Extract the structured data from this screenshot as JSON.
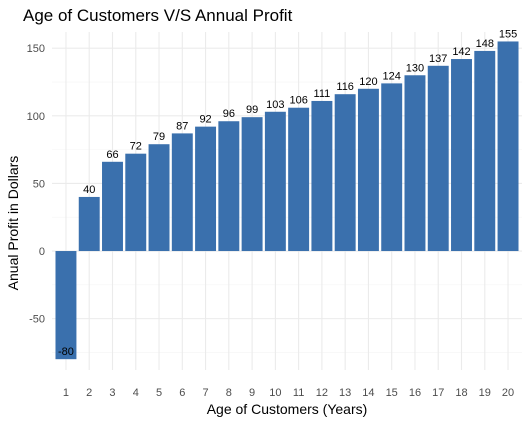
{
  "chart_data": {
    "type": "bar",
    "title": "Age of Customers V/S Annual Profit",
    "xlabel": "Age of Customers (Years)",
    "ylabel": "Anual Profit in Dollars",
    "categories": [
      "1",
      "2",
      "3",
      "4",
      "5",
      "6",
      "7",
      "8",
      "9",
      "10",
      "11",
      "12",
      "13",
      "14",
      "15",
      "16",
      "17",
      "18",
      "19",
      "20"
    ],
    "values": [
      -80,
      40,
      66,
      72,
      79,
      87,
      92,
      96,
      99,
      103,
      106,
      111,
      116,
      120,
      124,
      130,
      137,
      142,
      148,
      155
    ],
    "ylim": [
      -88,
      162
    ],
    "yticks": [
      -50,
      0,
      50,
      100,
      150
    ],
    "grid": true,
    "legend": "none",
    "colors": {
      "bar": "#3a70ad",
      "grid_major": "#ebebeb",
      "grid_minor": "#f5f5f5"
    }
  }
}
